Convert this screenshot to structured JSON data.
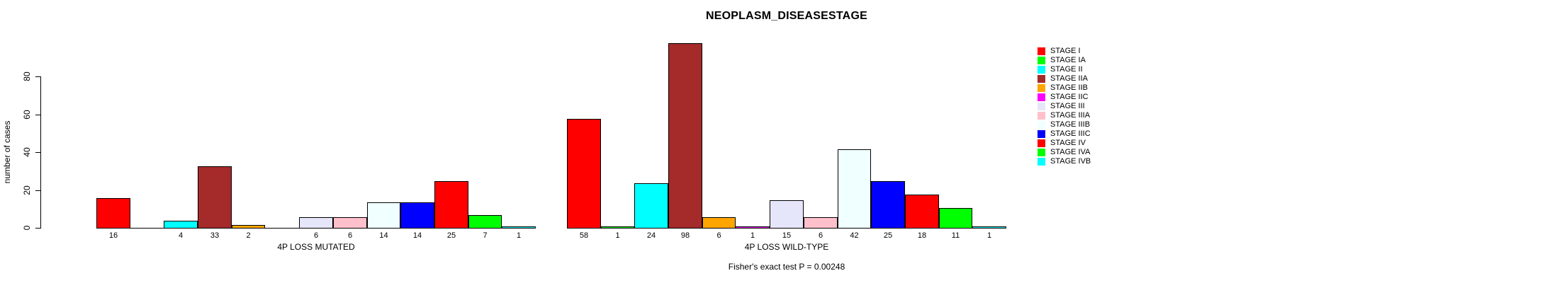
{
  "title": "NEOPLASM_DISEASESTAGE",
  "footer": "Fisher's exact test P = 0.00248",
  "y_axis": {
    "label": "number of cases",
    "ticks": [
      0,
      20,
      40,
      60,
      80
    ],
    "max": 80
  },
  "legend": {
    "items": [
      {
        "label": "STAGE I",
        "color": "#FF0000"
      },
      {
        "label": "STAGE IA",
        "color": "#00FF00"
      },
      {
        "label": "STAGE II",
        "color": "#00FFFF"
      },
      {
        "label": "STAGE IIA",
        "color": "#A52A2A"
      },
      {
        "label": "STAGE IIB",
        "color": "#FFA500"
      },
      {
        "label": "STAGE IIC",
        "color": "#FF00FF"
      },
      {
        "label": "STAGE III",
        "color": "#E6E6FA"
      },
      {
        "label": "STAGE IIIA",
        "color": "#FFC0CB"
      },
      {
        "label": "STAGE IIIB",
        "color": "#F0FFFF"
      },
      {
        "label": "STAGE IIIC",
        "color": "#0000FF"
      },
      {
        "label": "STAGE IV",
        "color": "#FF0000"
      },
      {
        "label": "STAGE IVA",
        "color": "#00FF00"
      },
      {
        "label": "STAGE IVB",
        "color": "#00FFFF"
      }
    ]
  },
  "chart_data": [
    {
      "type": "bar",
      "xlabel": "4P LOSS MUTATED",
      "ylabel": "number of cases",
      "ylim": [
        0,
        80
      ],
      "grid": false,
      "categories": [
        "STAGE I",
        "STAGE IA",
        "STAGE II",
        "STAGE IIA",
        "STAGE IIB",
        "STAGE IIC",
        "STAGE III",
        "STAGE IIIA",
        "STAGE IIIB",
        "STAGE IIIC",
        "STAGE IV",
        "STAGE IVA",
        "STAGE IVB"
      ],
      "values": [
        16,
        0,
        4,
        33,
        2,
        0,
        6,
        6,
        14,
        14,
        25,
        7,
        1
      ],
      "bar_labels": [
        "16",
        "",
        "4",
        "33",
        "2",
        "",
        "6",
        "6",
        "14",
        "14",
        "25",
        "7",
        "1"
      ]
    },
    {
      "type": "bar",
      "xlabel": "4P LOSS WILD-TYPE",
      "ylabel": "number of cases",
      "ylim": [
        0,
        80
      ],
      "grid": false,
      "categories": [
        "STAGE I",
        "STAGE IA",
        "STAGE II",
        "STAGE IIA",
        "STAGE IIB",
        "STAGE IIC",
        "STAGE III",
        "STAGE IIIA",
        "STAGE IIIB",
        "STAGE IIIC",
        "STAGE IV",
        "STAGE IVA",
        "STAGE IVB"
      ],
      "values": [
        58,
        1,
        24,
        98,
        6,
        1,
        15,
        6,
        42,
        25,
        18,
        11,
        1
      ],
      "bar_labels": [
        "58",
        "1",
        "24",
        "98",
        "6",
        "1",
        "15",
        "6",
        "42",
        "25",
        "18",
        "11",
        "1"
      ]
    }
  ],
  "legend_position": "right"
}
